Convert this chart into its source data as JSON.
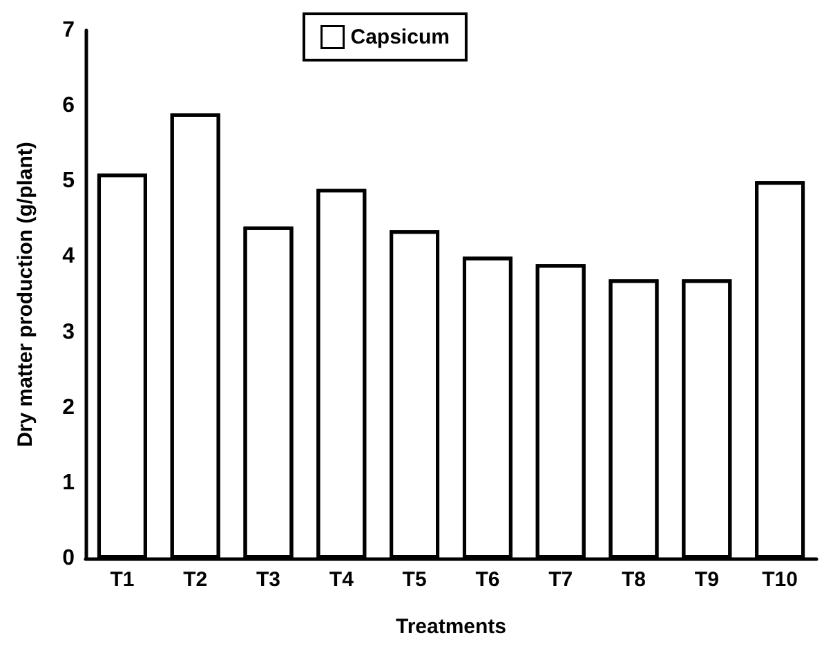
{
  "chart_data": {
    "type": "bar",
    "xlabel": "Treatments",
    "ylabel": "Dry matter production (g/plant)",
    "categories": [
      "T1",
      "T2",
      "T3",
      "T4",
      "T5",
      "T6",
      "T7",
      "T8",
      "T9",
      "T10"
    ],
    "series": [
      {
        "name": "Capsicum",
        "color": "#ffffff",
        "values": [
          5.1,
          5.9,
          4.4,
          4.9,
          4.35,
          4.0,
          3.9,
          3.7,
          3.7,
          5.0
        ]
      }
    ],
    "ylim": [
      0,
      7
    ],
    "yticks": [
      0,
      1,
      2,
      3,
      4,
      5,
      6,
      7
    ],
    "grid": false,
    "legend": "top"
  }
}
